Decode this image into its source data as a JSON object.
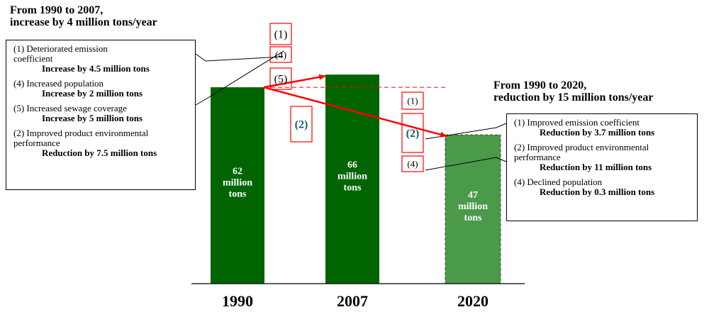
{
  "chart_data": {
    "type": "bar",
    "categories": [
      "1990",
      "2007",
      "2020"
    ],
    "values": [
      62,
      66,
      47
    ],
    "bar_labels": [
      "62\nmillion\ntons",
      "66\nmillion\ntons",
      "47\nmillion\ntons"
    ],
    "bar_styles": [
      "solid",
      "solid",
      "projected"
    ],
    "colors": {
      "solid": "#006400",
      "projected": "#4a9a4a",
      "arrow": "#ff0000",
      "factor_text": "#1a5a6a"
    },
    "ylim": [
      0,
      75
    ],
    "factor_boxes_1990_2007": [
      "(1)",
      "(4)",
      "(5)",
      "(2)"
    ],
    "factor_boxes_1990_2020": [
      "(1)",
      "(2)",
      "(4)"
    ],
    "annotation_left": {
      "title_line1": "From 1990 to 2007,",
      "title_line2": "increase by 4 million tons/year",
      "items": [
        {
          "label": "(1) Deteriorated emission coefficient",
          "amount": "Increase by 4.5 million tons"
        },
        {
          "label": "(4) Increased population",
          "amount": "Increase by 2 million tons"
        },
        {
          "label": "(5) Increased sewage coverage",
          "amount": "Increase by 5 million tons"
        },
        {
          "label": "(2) Improved product environmental performance",
          "amount": "Reduction by 7.5 million tons"
        }
      ]
    },
    "annotation_right": {
      "title_line1": "From 1990 to 2020,",
      "title_line2": "reduction by 15 million tons/year",
      "items": [
        {
          "label": "(1) Improved emission coefficient",
          "amount": "Reduction by 3.7 million tons"
        },
        {
          "label": "(2) Improved product environmental performance",
          "amount": "Reduction by 11 million tons"
        },
        {
          "label": "(4) Declined population",
          "amount": "Reduction by 0.3 million tons"
        }
      ]
    }
  }
}
